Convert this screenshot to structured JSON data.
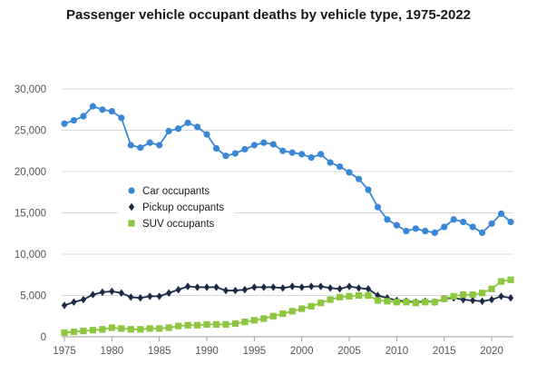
{
  "chart_data": {
    "type": "line",
    "title": "Passenger vehicle occupant deaths by vehicle type, 1975-2022",
    "xlabel": "",
    "ylabel": "",
    "x": [
      1975,
      1976,
      1977,
      1978,
      1979,
      1980,
      1981,
      1982,
      1983,
      1984,
      1985,
      1986,
      1987,
      1988,
      1989,
      1990,
      1991,
      1992,
      1993,
      1994,
      1995,
      1996,
      1997,
      1998,
      1999,
      2000,
      2001,
      2002,
      2003,
      2004,
      2005,
      2006,
      2007,
      2008,
      2009,
      2010,
      2011,
      2012,
      2013,
      2014,
      2015,
      2016,
      2017,
      2018,
      2019,
      2020,
      2021,
      2022
    ],
    "xlim": [
      1975,
      2022
    ],
    "ylim": [
      0,
      30000
    ],
    "x_ticks": [
      1975,
      1980,
      1985,
      1990,
      1995,
      2000,
      2005,
      2010,
      2015,
      2020
    ],
    "y_ticks": [
      0,
      5000,
      10000,
      15000,
      20000,
      25000,
      30000
    ],
    "x_tick_labels": [
      "1975",
      "1980",
      "1985",
      "1990",
      "1995",
      "2000",
      "2005",
      "2010",
      "2015",
      "2020"
    ],
    "y_tick_labels": [
      "0",
      "5,000",
      "10,000",
      "15,000",
      "20,000",
      "25,000",
      "30,000"
    ],
    "grid": "horizontal",
    "legend_position": "center-left",
    "series": [
      {
        "name": "Car occupants",
        "color": "#3a87d6",
        "marker": "circle",
        "values": [
          25800,
          26200,
          26700,
          27900,
          27500,
          27300,
          26500,
          23200,
          22900,
          23500,
          23200,
          24900,
          25200,
          25900,
          25400,
          24500,
          22800,
          21900,
          22200,
          22700,
          23200,
          23500,
          23300,
          22500,
          22300,
          22100,
          21700,
          22100,
          21100,
          20600,
          19900,
          19100,
          17800,
          15700,
          14200,
          13500,
          12800,
          13100,
          12800,
          12600,
          13300,
          14200,
          13900,
          13300,
          12600,
          13700,
          14900,
          13900
        ]
      },
      {
        "name": "Pickup occupants",
        "color": "#1a2a47",
        "marker": "diamond",
        "values": [
          3800,
          4200,
          4500,
          5100,
          5400,
          5500,
          5300,
          4800,
          4700,
          4900,
          4900,
          5300,
          5700,
          6100,
          6000,
          6000,
          6000,
          5600,
          5600,
          5700,
          6000,
          6000,
          6000,
          5900,
          6100,
          6000,
          6100,
          6100,
          5900,
          5800,
          6100,
          5900,
          5800,
          5000,
          4700,
          4400,
          4300,
          4200,
          4300,
          4200,
          4600,
          4700,
          4500,
          4400,
          4300,
          4500,
          4900,
          4700
        ]
      },
      {
        "name": "SUV occupants",
        "color": "#8dc63f",
        "marker": "square",
        "values": [
          500,
          600,
          700,
          800,
          900,
          1100,
          1000,
          900,
          900,
          1000,
          1000,
          1100,
          1300,
          1400,
          1400,
          1500,
          1500,
          1500,
          1600,
          1800,
          2000,
          2200,
          2500,
          2800,
          3100,
          3400,
          3700,
          4100,
          4500,
          4800,
          4900,
          5000,
          5000,
          4400,
          4300,
          4200,
          4200,
          4100,
          4200,
          4200,
          4600,
          4900,
          5100,
          5100,
          5300,
          5800,
          6700,
          6900
        ]
      }
    ]
  }
}
